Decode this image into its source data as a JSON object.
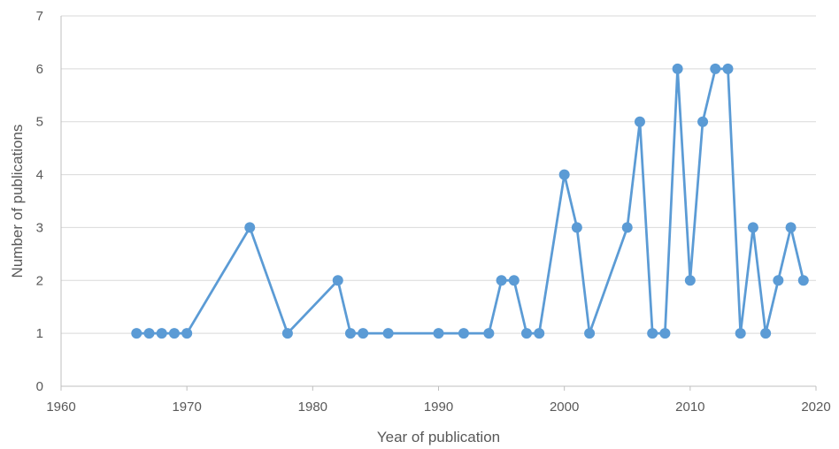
{
  "chart_data": {
    "type": "line",
    "title": "",
    "xlabel": "Year of publication",
    "ylabel": "Number of publications",
    "xlim": [
      1960,
      2020
    ],
    "ylim": [
      0,
      7
    ],
    "x_ticks": [
      1960,
      1970,
      1980,
      1990,
      2000,
      2010,
      2020
    ],
    "y_ticks": [
      0,
      1,
      2,
      3,
      4,
      5,
      6,
      7
    ],
    "grid": "horizontal",
    "legend": "none",
    "series": [
      {
        "color": "#5b9bd5",
        "points": [
          [
            1966,
            1
          ],
          [
            1967,
            1
          ],
          [
            1968,
            1
          ],
          [
            1969,
            1
          ],
          [
            1970,
            1
          ],
          [
            1975,
            3
          ],
          [
            1978,
            1
          ],
          [
            1982,
            2
          ],
          [
            1983,
            1
          ],
          [
            1984,
            1
          ],
          [
            1986,
            1
          ],
          [
            1990,
            1
          ],
          [
            1992,
            1
          ],
          [
            1994,
            1
          ],
          [
            1995,
            2
          ],
          [
            1996,
            2
          ],
          [
            1997,
            1
          ],
          [
            1998,
            1
          ],
          [
            2000,
            4
          ],
          [
            2001,
            3
          ],
          [
            2002,
            1
          ],
          [
            2005,
            3
          ],
          [
            2006,
            5
          ],
          [
            2007,
            1
          ],
          [
            2008,
            1
          ],
          [
            2009,
            6
          ],
          [
            2010,
            2
          ],
          [
            2011,
            5
          ],
          [
            2012,
            6
          ],
          [
            2013,
            6
          ],
          [
            2014,
            1
          ],
          [
            2015,
            3
          ],
          [
            2016,
            1
          ],
          [
            2017,
            2
          ],
          [
            2018,
            3
          ],
          [
            2019,
            2
          ]
        ]
      }
    ],
    "colors": {
      "gridline": "#d9d9d9",
      "axis": "#bfbfbf",
      "text": "#595959"
    }
  }
}
